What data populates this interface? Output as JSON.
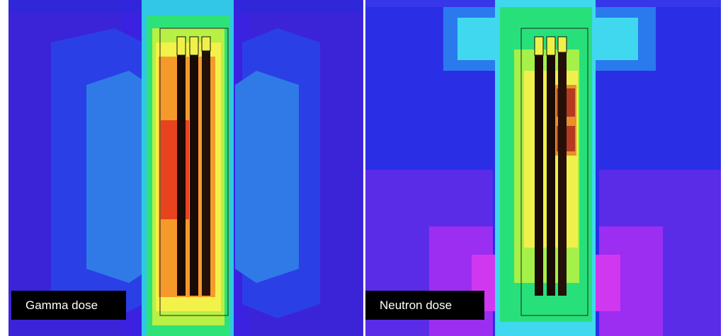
{
  "panels": [
    {
      "caption": "Gamma dose",
      "colors": {
        "outer": "#3a25e6",
        "mid": "#1f5bd8",
        "inner": "#2f8ae6",
        "edge": "#32c7e6",
        "green": "#2ee27a",
        "lime": "#b8f045",
        "yellow": "#f2f24a",
        "orange": "#f59a2a",
        "red": "#e8421e",
        "magenta": "#a020ff"
      }
    },
    {
      "caption": "Neutron dose",
      "colors": {
        "outer": "#5a2ce8",
        "mid": "#2a3cf0",
        "inner": "#2a7aee",
        "edge": "#40d8ee",
        "green": "#28e07a",
        "lime": "#a6f04a",
        "yellow": "#f0f04c",
        "orange": "#e8902a",
        "red": "#b43a22",
        "magenta": "#d038f0"
      }
    }
  ]
}
